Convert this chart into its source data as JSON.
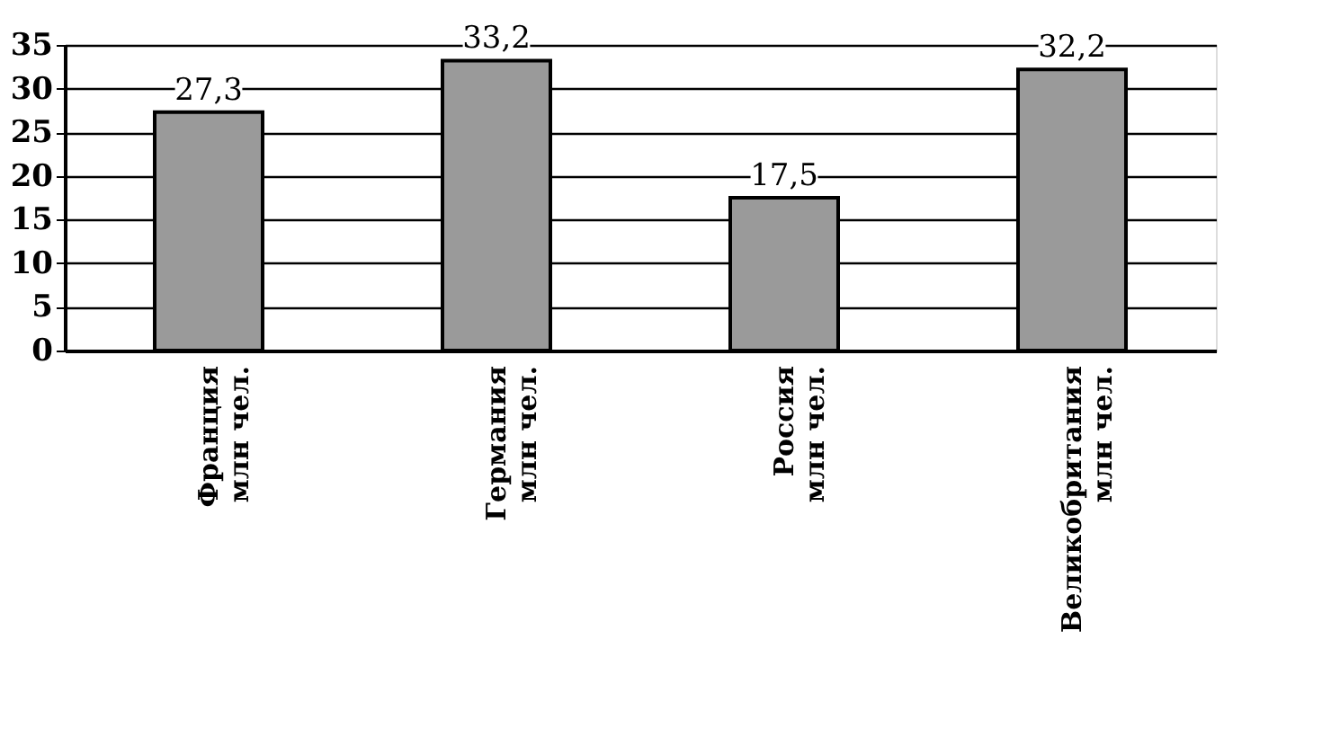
{
  "chart_data": {
    "type": "bar",
    "categories": [
      "Франция\nмлн чел.",
      "Германия\nмлн чел.",
      "Россия\nмлн чел.",
      "Великобритания\nмлн чел."
    ],
    "values": [
      27.3,
      33.2,
      17.5,
      32.2
    ],
    "value_labels": [
      "27,3",
      "33,2",
      "17,5",
      "32,2"
    ],
    "color": "#9a9a9a",
    "ylim": [
      0,
      35
    ],
    "yticks": [
      0,
      5,
      10,
      15,
      20,
      25,
      30,
      35
    ],
    "grid": "y"
  }
}
